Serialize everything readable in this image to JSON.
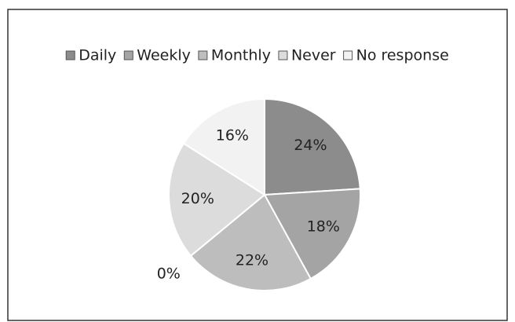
{
  "chart_data": {
    "type": "pie",
    "categories": [
      "Daily",
      "Weekly",
      "Monthly",
      null,
      "Never",
      "No response"
    ],
    "values": [
      24,
      18,
      22,
      0,
      20,
      16
    ],
    "value_labels": [
      "24%",
      "18%",
      "22%",
      "0%",
      "20%",
      "16%"
    ],
    "colors": [
      "#8c8c8c",
      "#a4a4a4",
      "#bdbdbd",
      "#cfcfcf",
      "#dcdcdc",
      "#f2f2f2"
    ],
    "legend": "top"
  }
}
